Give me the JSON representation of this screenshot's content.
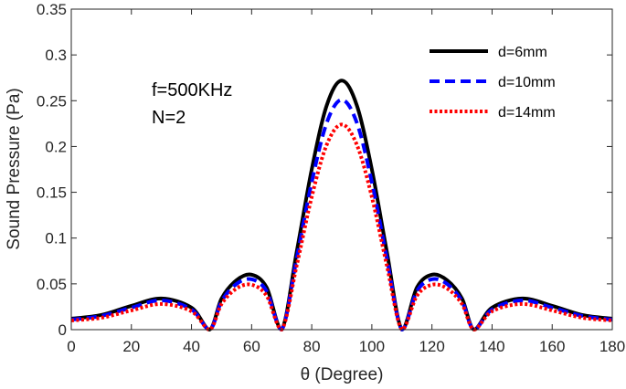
{
  "chart_data": {
    "type": "line",
    "title": "",
    "xlabel": "θ (Degree)",
    "ylabel": "Sound Pressure (Pa)",
    "xlim": [
      0,
      180
    ],
    "ylim": [
      0,
      0.35
    ],
    "xticks": [
      "0",
      "20",
      "40",
      "60",
      "80",
      "100",
      "120",
      "140",
      "160",
      "180"
    ],
    "yticks": [
      "0",
      "0.05",
      "0.1",
      "0.15",
      "0.2",
      "0.25",
      "0.3",
      "0.35"
    ],
    "grid": false,
    "legend_position": "top-right",
    "annotations": [
      "f=500KHz",
      "N=2"
    ],
    "x": [
      0,
      10,
      20,
      30,
      40,
      46,
      50,
      55,
      60,
      65,
      70,
      75,
      80,
      85,
      90,
      95,
      100,
      105,
      110,
      115,
      120,
      125,
      130,
      134,
      140,
      150,
      160,
      170,
      180
    ],
    "series": [
      {
        "name": "d=6mm",
        "color": "#000000",
        "style": "solid",
        "values": [
          0.012,
          0.016,
          0.026,
          0.034,
          0.024,
          0.0,
          0.034,
          0.054,
          0.06,
          0.046,
          0.0,
          0.085,
          0.175,
          0.245,
          0.272,
          0.245,
          0.175,
          0.085,
          0.0,
          0.046,
          0.06,
          0.054,
          0.034,
          0.0,
          0.024,
          0.034,
          0.026,
          0.016,
          0.012
        ]
      },
      {
        "name": "d=10mm",
        "color": "#0000ff",
        "style": "dashed",
        "values": [
          0.011,
          0.015,
          0.024,
          0.032,
          0.022,
          0.0,
          0.031,
          0.05,
          0.055,
          0.042,
          0.0,
          0.078,
          0.161,
          0.226,
          0.251,
          0.226,
          0.161,
          0.078,
          0.0,
          0.042,
          0.055,
          0.05,
          0.031,
          0.0,
          0.022,
          0.032,
          0.024,
          0.015,
          0.011
        ]
      },
      {
        "name": "d=14mm",
        "color": "#ff0000",
        "style": "dotted",
        "values": [
          0.01,
          0.013,
          0.021,
          0.028,
          0.02,
          0.0,
          0.028,
          0.045,
          0.049,
          0.037,
          0.0,
          0.07,
          0.145,
          0.202,
          0.224,
          0.202,
          0.145,
          0.07,
          0.0,
          0.037,
          0.049,
          0.045,
          0.028,
          0.0,
          0.02,
          0.028,
          0.021,
          0.013,
          0.01
        ]
      }
    ]
  }
}
